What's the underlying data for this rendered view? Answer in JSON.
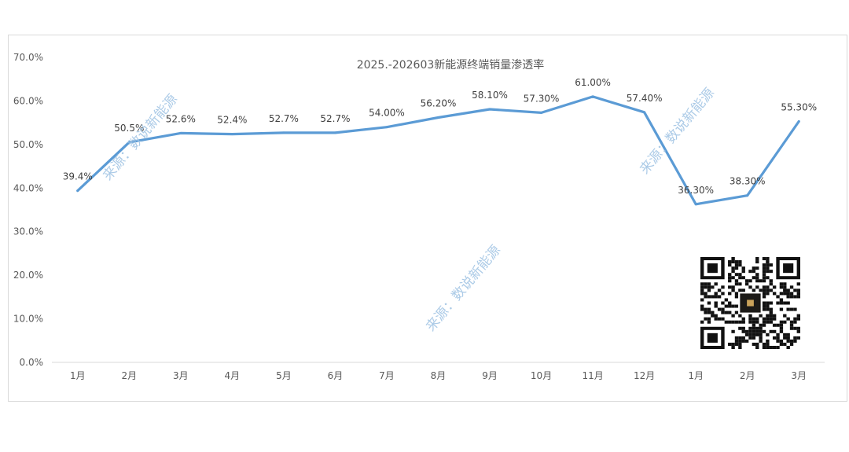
{
  "chart_data": {
    "type": "line",
    "title": "2025.-202603新能源终端销量渗透率",
    "categories": [
      "1月",
      "2月",
      "3月",
      "4月",
      "5月",
      "6月",
      "7月",
      "8月",
      "9月",
      "10月",
      "11月",
      "12月",
      "1月",
      "2月",
      "3月"
    ],
    "series": [
      {
        "values": [
          39.4,
          50.5,
          52.6,
          52.4,
          52.7,
          52.7,
          54.0,
          56.2,
          58.1,
          57.3,
          61.0,
          57.4,
          36.3,
          38.3,
          55.3
        ],
        "labels": [
          "39.4%",
          "50.5%",
          "52.6%",
          "52.4%",
          "52.7%",
          "52.7%",
          "54.00%",
          "56.20%",
          "58.10%",
          "57.30%",
          "61.00%",
          "57.40%",
          "36.30%",
          "38.30%",
          "55.30%"
        ],
        "color": "#5b9bd5"
      }
    ],
    "y_ticks": [
      "0.0%",
      "10.0%",
      "20.0%",
      "30.0%",
      "40.0%",
      "50.0%",
      "60.0%",
      "70.0%"
    ],
    "ylim": [
      0,
      70
    ],
    "grid": false
  },
  "watermark": "来源：数说新能源",
  "qr_icon": "qr-code-icon"
}
